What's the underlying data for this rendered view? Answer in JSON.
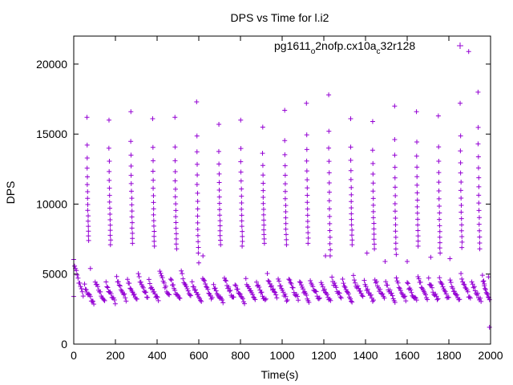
{
  "chart_data": {
    "type": "scatter",
    "title": "DPS vs Time for l.i2",
    "xlabel": "Time(s)",
    "ylabel": "DPS",
    "xlim": [
      0,
      2000
    ],
    "ylim": [
      0,
      22000
    ],
    "xticks": [
      0,
      200,
      400,
      600,
      800,
      1000,
      1200,
      1400,
      1600,
      1800,
      2000
    ],
    "yticks": [
      0,
      5000,
      10000,
      15000,
      20000
    ],
    "legend_position": "top-right",
    "marker": "+",
    "color": "#9400d3",
    "series": [
      {
        "name": "pg1611_o2nofp.cx10a_c32r128",
        "legend_parts": [
          {
            "text": "pg1611",
            "sub": false
          },
          {
            "text": "o",
            "sub": true
          },
          {
            "text": "2nofp.cx10a",
            "sub": false
          },
          {
            "text": "c",
            "sub": true
          },
          {
            "text": "32r128",
            "sub": false
          }
        ],
        "cycle_starts": [
          0,
          52,
          103,
          155,
          206,
          258,
          310,
          361,
          413,
          465,
          516,
          568,
          619,
          671,
          723,
          774,
          826,
          877,
          929,
          981,
          1032,
          1084,
          1135,
          1187,
          1239,
          1290,
          1342,
          1394,
          1445,
          1497,
          1548,
          1600,
          1652,
          1703,
          1755,
          1806,
          1858,
          1910,
          1961
        ],
        "cycle_base_values": [
          6000,
          4200,
          4500,
          4300,
          4800,
          4700,
          5000,
          4500,
          5300,
          4700,
          5200,
          4400,
          4800,
          4300,
          4800,
          4300,
          4600,
          4400,
          4900,
          4600,
          4700,
          4500,
          4600,
          4400,
          4700,
          4500,
          4800,
          4400,
          4700,
          4500,
          4700,
          4400,
          4900,
          4600,
          4800,
          4500,
          4900,
          4500,
          4800
        ],
        "cycle_floor_values": [
          3300,
          2800,
          3000,
          2900,
          3100,
          3000,
          3200,
          3000,
          3300,
          3000,
          3200,
          3000,
          3100,
          2900,
          3100,
          2900,
          3100,
          3000,
          3200,
          3000,
          3100,
          3000,
          3100,
          3000,
          3200,
          3000,
          3200,
          3000,
          3100,
          3000,
          3100,
          3000,
          3200,
          3000,
          3100,
          3000,
          3100,
          3000,
          3000
        ],
        "burst_times": [
          63,
          169,
          274,
          379,
          485,
          590,
          696,
          801,
          906,
          1012,
          1117,
          1223,
          1328,
          1434,
          1539,
          1645,
          1750,
          1855,
          1940
        ],
        "burst_peaks": [
          16200,
          16000,
          16600,
          16100,
          16200,
          17300,
          15700,
          16000,
          15500,
          16700,
          17200,
          17800,
          16100,
          15900,
          17000,
          16600,
          16300,
          17200,
          18000
        ],
        "burst_lows": [
          7400,
          7100,
          7200,
          7000,
          6800,
          6500,
          7100,
          7000,
          7200,
          7100,
          7200,
          6300,
          7100,
          6800,
          6400,
          7000,
          6500,
          6900,
          6800
        ],
        "outliers": [
          {
            "x": 1895,
            "y": 20900
          },
          {
            "x": 80,
            "y": 5400
          },
          {
            "x": 600,
            "y": 5800
          },
          {
            "x": 620,
            "y": 6300
          },
          {
            "x": 1208,
            "y": 6300
          },
          {
            "x": 1407,
            "y": 6500
          },
          {
            "x": 1494,
            "y": 5900
          },
          {
            "x": 1600,
            "y": 5900
          },
          {
            "x": 1713,
            "y": 6200
          },
          {
            "x": 0,
            "y": 3400
          },
          {
            "x": 1995,
            "y": 1200
          },
          {
            "x": 1990,
            "y": 4800
          },
          {
            "x": 1970,
            "y": 4300
          },
          {
            "x": 1805,
            "y": 6100
          }
        ]
      }
    ]
  }
}
